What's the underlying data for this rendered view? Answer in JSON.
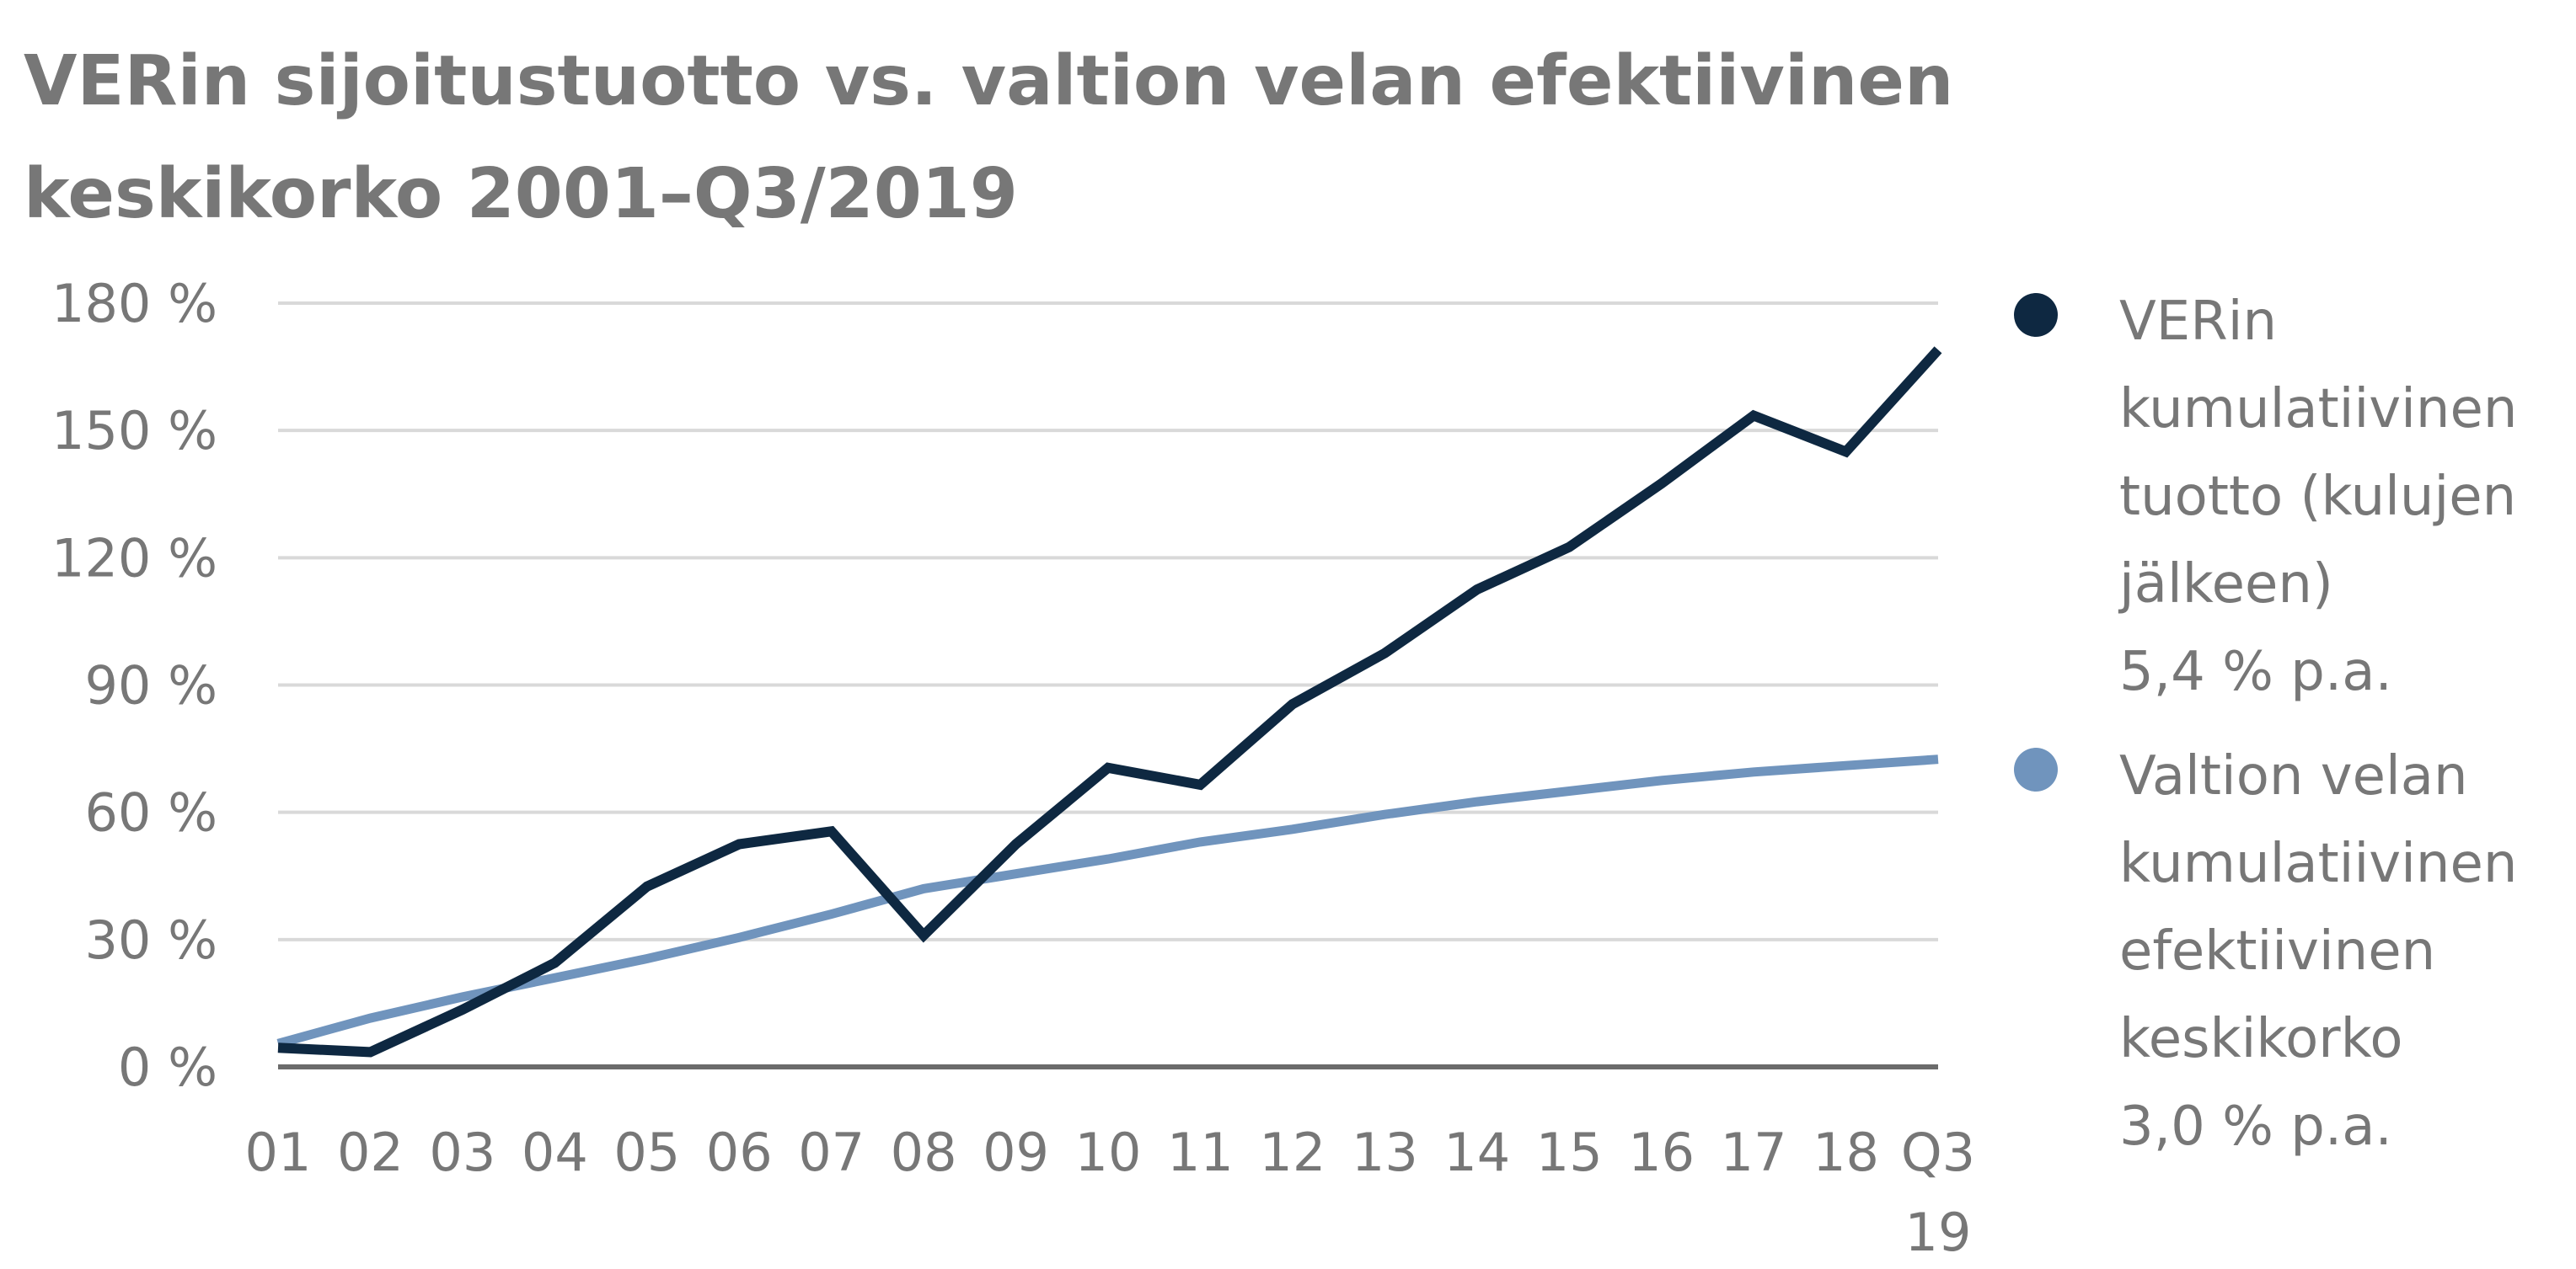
{
  "chart_data": {
    "type": "line",
    "title_lines": [
      "VERin sijoitustuotto vs. valtion velan efektiivinen",
      "keskikorko 2001–Q3/2019"
    ],
    "categories": [
      "01",
      "02",
      "03",
      "04",
      "05",
      "06",
      "07",
      "08",
      "09",
      "10",
      "11",
      "12",
      "13",
      "14",
      "15",
      "16",
      "17",
      "18",
      "Q3\n19"
    ],
    "category_lines": [
      [
        "01"
      ],
      [
        "02"
      ],
      [
        "03"
      ],
      [
        "04"
      ],
      [
        "05"
      ],
      [
        "06"
      ],
      [
        "07"
      ],
      [
        "08"
      ],
      [
        "09"
      ],
      [
        "10"
      ],
      [
        "11"
      ],
      [
        "12"
      ],
      [
        "13"
      ],
      [
        "14"
      ],
      [
        "15"
      ],
      [
        "16"
      ],
      [
        "17"
      ],
      [
        "18"
      ],
      [
        "Q3",
        "19"
      ]
    ],
    "y_ticks": [
      "0 %",
      "30 %",
      "60 %",
      "90 %",
      "120 %",
      "150 %",
      "180 %"
    ],
    "y_tick_values": [
      0,
      30,
      60,
      90,
      120,
      150,
      180
    ],
    "ylim": [
      0,
      180
    ],
    "grid": true,
    "legend_position": "right",
    "series": [
      {
        "name_lines": [
          "VERin",
          "kumulatiivinen",
          "tuotto (kulujen",
          "jälkeen)"
        ],
        "rate": "5,4 % p.a.",
        "color": "#0e2841",
        "values": [
          4.5,
          3.5,
          13.5,
          24.5,
          42.5,
          52.5,
          55.5,
          31.0,
          52.5,
          70.5,
          66.5,
          85.5,
          97.5,
          112.5,
          122.5,
          137.5,
          153.5,
          145.0,
          169.0
        ]
      },
      {
        "name_lines": [
          "Valtion velan",
          "kumulatiivinen",
          "efektiivinen",
          "keskikorko"
        ],
        "rate": "3,0 % p.a.",
        "color": "#7094bd",
        "values": [
          5.5,
          11.5,
          16.5,
          21.0,
          25.5,
          30.5,
          36.0,
          42.0,
          45.5,
          49.0,
          53.0,
          56.0,
          59.5,
          62.5,
          65.0,
          67.5,
          69.5,
          71.0,
          72.5
        ]
      }
    ]
  }
}
